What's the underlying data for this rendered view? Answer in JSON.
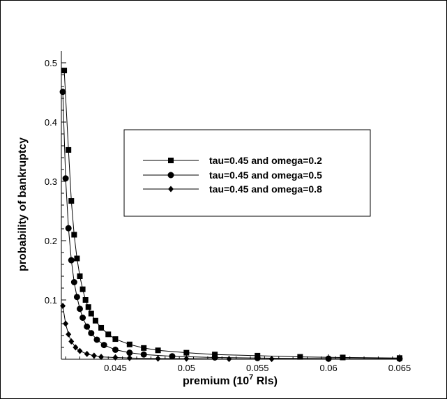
{
  "chart_data": {
    "type": "line",
    "xlabel": "premium (10",
    "xlabel_sup": "7",
    "xlabel_tail": " Rls)",
    "ylabel": "probability of bankruptcy",
    "xlim": [
      0.0412,
      0.065
    ],
    "ylim": [
      0,
      0.52
    ],
    "x_ticks": [
      0.045,
      0.05,
      0.055,
      0.06,
      0.065
    ],
    "x_tick_labels": [
      "0.045",
      "0.05",
      "0.055",
      "0.06",
      "0.065"
    ],
    "y_ticks": [
      0.1,
      0.2,
      0.3,
      0.4,
      0.5
    ],
    "y_tick_labels": [
      "0.1",
      "0.2",
      "0.3",
      "0.4",
      "0.5"
    ],
    "grid": false,
    "legend_position": "center-right",
    "series": [
      {
        "name": "tau=0.45 and  omega=0.2",
        "marker": "square",
        "x": [
          0.0414,
          0.0417,
          0.0419,
          0.0421,
          0.0423,
          0.0425,
          0.0427,
          0.0429,
          0.0431,
          0.0433,
          0.0436,
          0.044,
          0.0445,
          0.045,
          0.046,
          0.047,
          0.048,
          0.05,
          0.052,
          0.055,
          0.058,
          0.061,
          0.065
        ],
        "y": [
          0.487,
          0.353,
          0.267,
          0.21,
          0.17,
          0.14,
          0.118,
          0.1,
          0.088,
          0.077,
          0.065,
          0.053,
          0.042,
          0.034,
          0.025,
          0.019,
          0.015,
          0.011,
          0.008,
          0.006,
          0.004,
          0.003,
          0.002
        ]
      },
      {
        "name": "tau=0.45 and  omega=0.5",
        "marker": "circle",
        "x": [
          0.0413,
          0.0415,
          0.0417,
          0.0419,
          0.0421,
          0.0423,
          0.0425,
          0.0427,
          0.043,
          0.0433,
          0.0437,
          0.0442,
          0.045,
          0.046,
          0.047,
          0.049,
          0.052,
          0.055,
          0.06,
          0.065
        ],
        "y": [
          0.451,
          0.305,
          0.221,
          0.167,
          0.13,
          0.105,
          0.085,
          0.07,
          0.055,
          0.044,
          0.033,
          0.024,
          0.016,
          0.011,
          0.008,
          0.005,
          0.003,
          0.002,
          0.001,
          0.001
        ]
      },
      {
        "name": "tau=0.45 and  omega=0.8",
        "marker": "diamond",
        "x": [
          0.0413,
          0.0415,
          0.0417,
          0.0419,
          0.0422,
          0.0425,
          0.043,
          0.0435,
          0.044,
          0.045,
          0.046,
          0.048,
          0.05,
          0.053,
          0.056,
          0.06,
          0.065
        ],
        "y": [
          0.09,
          0.06,
          0.042,
          0.03,
          0.02,
          0.014,
          0.009,
          0.006,
          0.004,
          0.003,
          0.002,
          0.001,
          0.001,
          0.0005,
          0.0004,
          0.0003,
          0.0002
        ]
      }
    ]
  }
}
